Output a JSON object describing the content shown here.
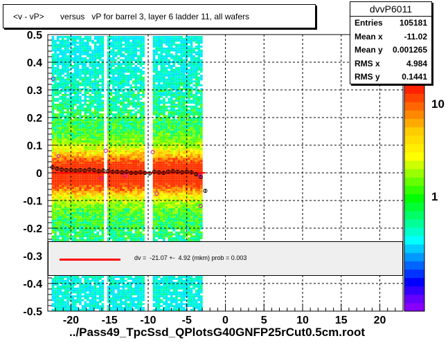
{
  "title": "<v - vP>       versus   vP for barrel 3, layer 6 ladder 11, all wafers",
  "stats": {
    "name": "dvvP6011",
    "rows": [
      {
        "key": "Entries",
        "value": "105181"
      },
      {
        "key": "Mean x",
        "value": "-11.02"
      },
      {
        "key": "Mean y",
        "value": "0.001265"
      },
      {
        "key": "RMS x",
        "value": "4.984"
      },
      {
        "key": "RMS y",
        "value": "0.1441"
      }
    ]
  },
  "fit": {
    "text": "dv =  -21.07 +-  4.92 (mkm) prob = 0.003",
    "color": "#ff0000"
  },
  "xlabel": "../Pass49_TpcSsd_QPlotsG40GNFP25rCut0.5cm.root",
  "chart_data": {
    "type": "heatmap",
    "title": "<v - vP>       versus   vP for barrel 3, layer 6 ladder 11, all wafers",
    "xlabel": "../Pass49_TpcSsd_QPlotsG40GNFP25rCut0.5cm.root",
    "ylabel": "",
    "xlim": [
      -23,
      23
    ],
    "ylim": [
      -0.5,
      0.5
    ],
    "x_ticks": [
      "-20",
      "-15",
      "-10",
      "-5",
      "0",
      "5",
      "10",
      "15",
      "20"
    ],
    "y_ticks": [
      "-0.5",
      "-0.4",
      "-0.3",
      "-0.2",
      "-0.1",
      "0",
      "0.1",
      "0.2",
      "0.3",
      "0.4",
      "0.5"
    ],
    "z_scale": "log",
    "z_ticks": [
      "1",
      "10"
    ],
    "grid": true,
    "profile_points": [
      {
        "x": -22.4,
        "y": 0.02
      },
      {
        "x": -21.8,
        "y": 0.015
      },
      {
        "x": -21.2,
        "y": 0.012
      },
      {
        "x": -20.6,
        "y": 0.01
      },
      {
        "x": -20.0,
        "y": 0.01
      },
      {
        "x": -19.4,
        "y": 0.008
      },
      {
        "x": -18.8,
        "y": 0.01
      },
      {
        "x": -18.2,
        "y": 0.008
      },
      {
        "x": -17.6,
        "y": 0.012
      },
      {
        "x": -17.0,
        "y": 0.01
      },
      {
        "x": -16.4,
        "y": 0.006
      },
      {
        "x": -15.8,
        "y": 0.008
      },
      {
        "x": -15.2,
        "y": 0.006
      },
      {
        "x": -14.6,
        "y": 0.004
      },
      {
        "x": -14.0,
        "y": 0.004
      },
      {
        "x": -13.4,
        "y": 0.002
      },
      {
        "x": -12.8,
        "y": 0.004
      },
      {
        "x": -12.2,
        "y": 0.0
      },
      {
        "x": -11.6,
        "y": 0.0
      },
      {
        "x": -11.0,
        "y": 0.002
      },
      {
        "x": -10.4,
        "y": 0.0
      },
      {
        "x": -9.8,
        "y": -0.002
      },
      {
        "x": -9.2,
        "y": 0.004
      },
      {
        "x": -8.6,
        "y": 0.002
      },
      {
        "x": -8.0,
        "y": 0.0
      },
      {
        "x": -7.4,
        "y": 0.004
      },
      {
        "x": -6.8,
        "y": 0.006
      },
      {
        "x": -6.2,
        "y": 0.004
      },
      {
        "x": -5.6,
        "y": 0.002
      },
      {
        "x": -5.0,
        "y": 0.004
      },
      {
        "x": -4.4,
        "y": 0.002
      },
      {
        "x": -3.8,
        "y": -0.005
      },
      {
        "x": -3.2,
        "y": -0.015
      },
      {
        "x": -2.6,
        "y": -0.065
      }
    ],
    "outlier_points": [
      {
        "x": -22.3,
        "y": 0.34
      },
      {
        "x": -21.6,
        "y": 0.06
      },
      {
        "x": -15.5,
        "y": 0.08
      },
      {
        "x": -9.4,
        "y": 0.075
      },
      {
        "x": -16.1,
        "y": -0.02
      },
      {
        "x": -13.0,
        "y": -0.01
      },
      {
        "x": -8.9,
        "y": -0.075
      },
      {
        "x": -3.2,
        "y": -0.12
      },
      {
        "x": -3.3,
        "y": -0.01
      }
    ],
    "fit_line": {
      "x_start": -22,
      "x_end": -2.6,
      "y": -2e-05
    }
  }
}
